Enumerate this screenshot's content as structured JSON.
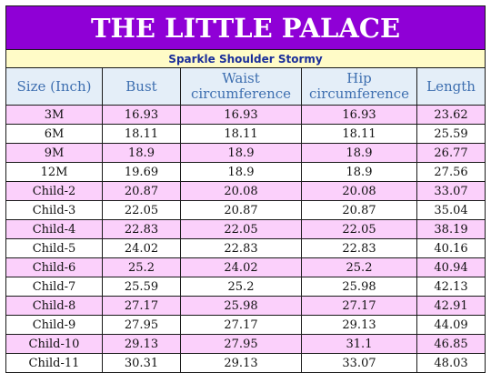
{
  "title": "THE LITTLE PALACE",
  "subtitle": "Sparkle Shoulder Stormy",
  "headers": [
    {
      "line1": "Size (Inch)",
      "line2": ""
    },
    {
      "line1": "Bust",
      "line2": ""
    },
    {
      "line1": "Waist",
      "line2": "circumference"
    },
    {
      "line1": "Hip",
      "line2": "circumference"
    },
    {
      "line1": "Length",
      "line2": ""
    }
  ],
  "rows": [
    [
      "3M",
      "16.93",
      "16.93",
      "16.93",
      "23.62"
    ],
    [
      "6M",
      "18.11",
      "18.11",
      "18.11",
      "25.59"
    ],
    [
      "9M",
      "18.9",
      "18.9",
      "18.9",
      "26.77"
    ],
    [
      "12M",
      "19.69",
      "18.9",
      "18.9",
      "27.56"
    ],
    [
      "Child-2",
      "20.87",
      "20.08",
      "20.08",
      "33.07"
    ],
    [
      "Child-3",
      "22.05",
      "20.87",
      "20.87",
      "35.04"
    ],
    [
      "Child-4",
      "22.83",
      "22.05",
      "22.05",
      "38.19"
    ],
    [
      "Child-5",
      "24.02",
      "22.83",
      "22.83",
      "40.16"
    ],
    [
      "Child-6",
      "25.2",
      "24.02",
      "25.2",
      "40.94"
    ],
    [
      "Child-7",
      "25.59",
      "25.2",
      "25.98",
      "42.13"
    ],
    [
      "Child-8",
      "27.17",
      "25.98",
      "27.17",
      "42.91"
    ],
    [
      "Child-9",
      "27.95",
      "27.17",
      "29.13",
      "44.09"
    ],
    [
      "Child-10",
      "29.13",
      "27.95",
      "31.1",
      "46.85"
    ],
    [
      "Child-11",
      "30.31",
      "29.13",
      "33.07",
      "48.03"
    ]
  ],
  "colors": {
    "title_bg": "#8f00d6",
    "subtitle_bg": "#fffbc7",
    "header_bg": "#e4eef8",
    "row_pink": "#fbd0fb",
    "row_white": "#ffffff"
  }
}
